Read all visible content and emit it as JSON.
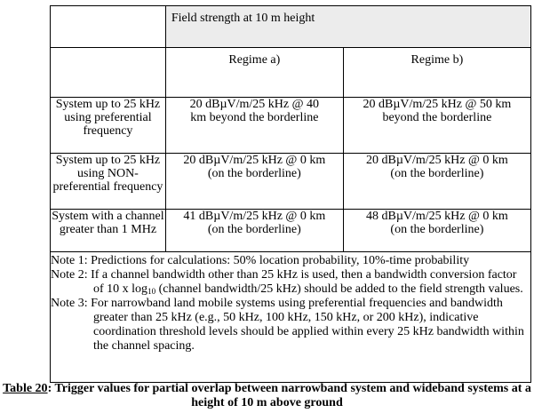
{
  "table": {
    "header_field_strength": "Field strength at 10 m height",
    "regime_a": "Regime a)",
    "regime_b": "Regime b)",
    "rows": [
      {
        "system": "System up to 25 kHz using preferential frequency",
        "a_line1": "20 dBµV/m/25 kHz @ 40",
        "a_line2": "km beyond the borderline",
        "b_line1": "20 dBµV/m/25 kHz @ 50 km",
        "b_line2": "beyond the borderline"
      },
      {
        "system": "System up to 25 kHz using NON-preferential frequency",
        "a_line1": "20 dBµV/m/25 kHz @ 0 km",
        "a_line2": "(on the borderline)",
        "b_line1": "20 dBµV/m/25 kHz @ 0 km",
        "b_line2": "(on the borderline)"
      },
      {
        "system": "System with a channel greater than 1 MHz",
        "a_line1": "41 dBµV/m/25 kHz @ 0 km",
        "a_line2": "(on the borderline)",
        "b_line1": "48 dBµV/m/25 kHz @ 0 km",
        "b_line2": "(on the borderline)"
      }
    ],
    "notes": {
      "note1": "Note 1: Predictions for calculations: 50% location probability, 10%-time probability",
      "note2_part1": "Note 2: If a channel bandwidth other than 25 kHz is used, then a bandwidth conversion factor of 10 x log",
      "note2_sub": "10",
      "note2_part2": " (channel bandwidth/25 kHz) should be added to the field strength values.",
      "note3": "Note 3: For narrowband land mobile systems using preferential frequencies and bandwidth greater than 25 kHz (e.g., 50 kHz, 100 kHz, 150 kHz, or 200 kHz), indicative coordination threshold levels should be applied within every 25 kHz bandwidth within the channel spacing."
    }
  },
  "caption": {
    "ref": "Table 20",
    "text": ": Trigger values for partial overlap between narrowband system and wideband systems at a height of 10 m above ground"
  }
}
